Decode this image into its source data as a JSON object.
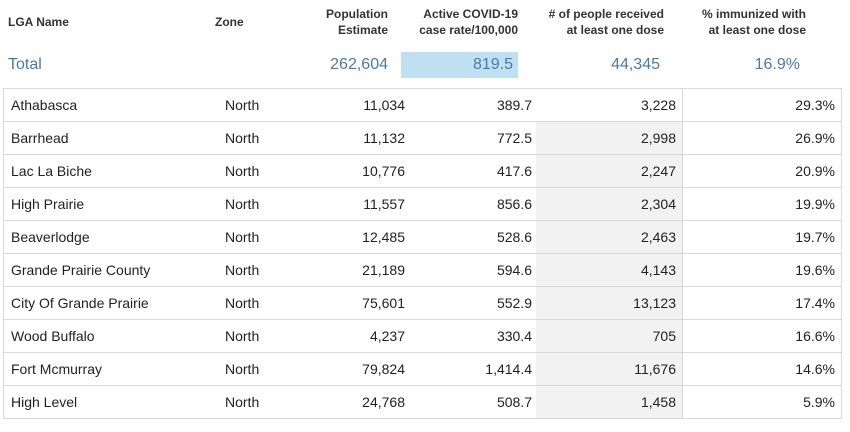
{
  "headers": {
    "lga_name": "LGA Name",
    "zone": "Zone",
    "population_line1": "Population",
    "population_line2": "Estimate",
    "rate_line1": "Active COVID-19",
    "rate_line2": "case rate/100,000",
    "doses_line1": "# of people received",
    "doses_line2": "at least one dose",
    "pct_line1": "% immunized with",
    "pct_line2": "at least one dose"
  },
  "totals": {
    "label": "Total",
    "population": "262,604",
    "rate": "819.5",
    "doses": "44,345",
    "pct": "16.9%"
  },
  "rows": [
    {
      "name": "Athabasca",
      "zone": "North",
      "population": "11,034",
      "rate": "389.7",
      "doses": "3,228",
      "pct": "29.3%"
    },
    {
      "name": "Barrhead",
      "zone": "North",
      "population": "11,132",
      "rate": "772.5",
      "doses": "2,998",
      "pct": "26.9%"
    },
    {
      "name": "Lac La Biche",
      "zone": "North",
      "population": "10,776",
      "rate": "417.6",
      "doses": "2,247",
      "pct": "20.9%"
    },
    {
      "name": "High Prairie",
      "zone": "North",
      "population": "11,557",
      "rate": "856.6",
      "doses": "2,304",
      "pct": "19.9%"
    },
    {
      "name": "Beaverlodge",
      "zone": "North",
      "population": "12,485",
      "rate": "528.6",
      "doses": "2,463",
      "pct": "19.7%"
    },
    {
      "name": "Grande Prairie County",
      "zone": "North",
      "population": "21,189",
      "rate": "594.6",
      "doses": "4,143",
      "pct": "19.6%"
    },
    {
      "name": "City Of Grande Prairie",
      "zone": "North",
      "population": "75,601",
      "rate": "552.9",
      "doses": "13,123",
      "pct": "17.4%"
    },
    {
      "name": "Wood Buffalo",
      "zone": "North",
      "population": "4,237",
      "rate": "330.4",
      "doses": "705",
      "pct": "16.6%"
    },
    {
      "name": "Fort Mcmurray",
      "zone": "North",
      "population": "79,824",
      "rate": "1,414.4",
      "doses": "11,676",
      "pct": "14.6%"
    },
    {
      "name": "High Level",
      "zone": "North",
      "population": "24,768",
      "rate": "508.7",
      "doses": "1,458",
      "pct": "5.9%"
    }
  ],
  "colors": {
    "total_text": "#4a7aab",
    "highlight": "#bfe0f0",
    "shaded_cell": "#f2f2f2",
    "grid_line": "#d9d9d9"
  }
}
